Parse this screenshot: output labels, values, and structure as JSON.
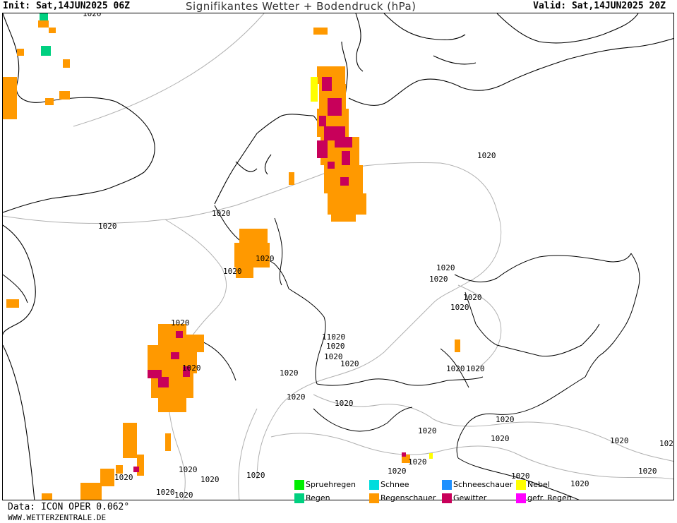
{
  "header": {
    "init": "Init: Sat,14JUN2025 06Z",
    "title": "Signifikantes Wetter + Bodendruck (hPa)",
    "valid": "Valid: Sat,14JUN2025 20Z"
  },
  "map": {
    "isobar_label": "1020",
    "isobar_label_alt": "11020",
    "colors": {
      "coastline": "#000000",
      "border": "#000000",
      "isobar": "#b0b0b0",
      "regenschauer": "#ff9900",
      "gewitter": "#c8005a",
      "nebel": "#ffff00",
      "regen": "#00d080"
    }
  },
  "legend": [
    {
      "label": "Spruehregen",
      "color": "#00ee00"
    },
    {
      "label": "Schnee",
      "color": "#00dddd"
    },
    {
      "label": "Schneeschauer",
      "color": "#1e90ff"
    },
    {
      "label": "Nebel",
      "color": "#ffff00"
    },
    {
      "label": "Regen",
      "color": "#00d080"
    },
    {
      "label": "Regenschauer",
      "color": "#ff9900"
    },
    {
      "label": "Gewitter",
      "color": "#c8005a"
    },
    {
      "label": "gefr. Regen",
      "color": "#ff00ff"
    }
  ],
  "footer": {
    "data": "Data: ICON OPER 0.062°",
    "site": "WWW.WETTERZENTRALE.DE"
  }
}
